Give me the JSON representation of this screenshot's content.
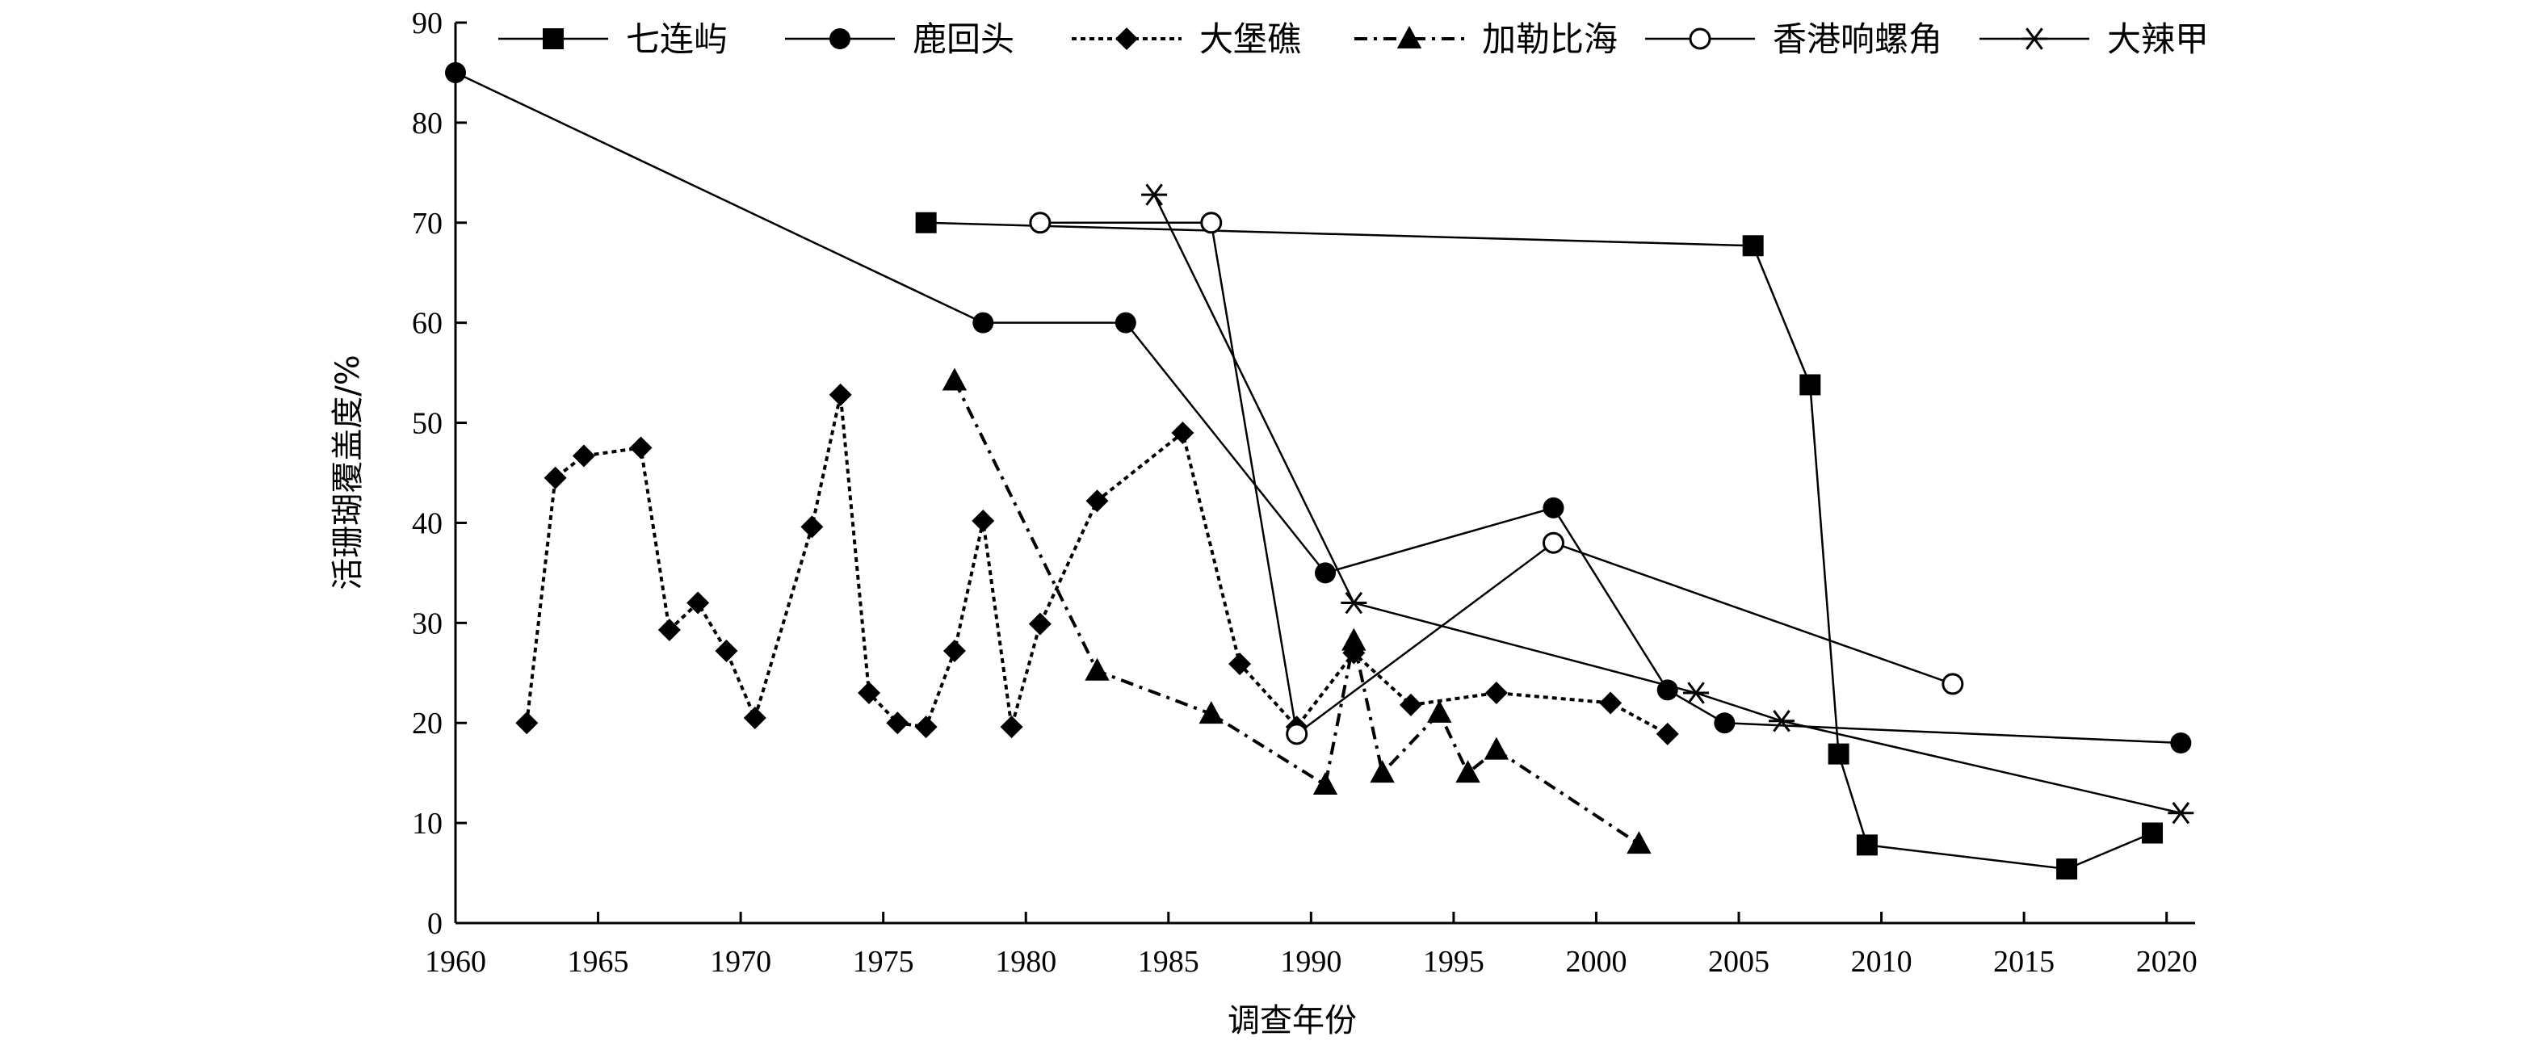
{
  "chart_data": {
    "type": "line",
    "xlabel": "调查年份",
    "ylabel": "活珊瑚覆盖度/%",
    "xlim": [
      1960,
      2021
    ],
    "ylim": [
      0,
      90
    ],
    "xticks": [
      "1960",
      "1965",
      "1970",
      "1975",
      "1980",
      "1985",
      "1990",
      "1995",
      "2000",
      "2005",
      "2010",
      "2015",
      "2020"
    ],
    "yticks": [
      "0",
      "10",
      "20",
      "30",
      "40",
      "50",
      "60",
      "70",
      "80",
      "90"
    ],
    "legend_position": "top",
    "series": [
      {
        "name": "七连屿",
        "marker": "square",
        "line": "solid",
        "x": [
          1976.5,
          2005.5,
          2007.5,
          2008.5,
          2009.5,
          2016.5,
          2019.5
        ],
        "y": [
          70,
          67.7,
          53.8,
          16.9,
          7.8,
          5.4,
          9.0
        ]
      },
      {
        "name": "鹿回头",
        "marker": "circle",
        "line": "solid",
        "x": [
          1960,
          1978.5,
          1983.5,
          1990.5,
          1998.5,
          2002.5,
          2004.5,
          2020.5
        ],
        "y": [
          85,
          60,
          60,
          35,
          41.5,
          23.3,
          20,
          18
        ]
      },
      {
        "name": "大堡礁",
        "marker": "diamond",
        "line": "dotted",
        "x": [
          1962.5,
          1963.5,
          1964.5,
          1966.5,
          1967.5,
          1968.5,
          1969.5,
          1970.5,
          1972.5,
          1973.5,
          1974.5,
          1975.5,
          1976.5,
          1977.5,
          1978.5,
          1979.5,
          1980.5,
          1982.5,
          1985.5,
          1987.5,
          1989.5,
          1991.5,
          1993.5,
          1996.5,
          2000.5,
          2002.5
        ],
        "y": [
          20,
          44.5,
          46.7,
          47.5,
          29.3,
          32,
          27.2,
          20.5,
          39.6,
          52.8,
          23,
          20,
          19.6,
          27.2,
          40.2,
          19.6,
          29.9,
          42.2,
          49,
          25.9,
          19.6,
          27,
          21.8,
          23,
          22,
          18.9
        ]
      },
      {
        "name": "加勒比海",
        "marker": "triangle",
        "line": "dashdot",
        "x": [
          1977.5,
          1982.5,
          1986.5,
          1990.5,
          1991.5,
          1992.5,
          1994.5,
          1995.5,
          1996.5,
          2001.5
        ],
        "y": [
          54.2,
          25.2,
          20.9,
          13.8,
          28.2,
          15,
          21,
          15,
          17.3,
          7.9
        ]
      },
      {
        "name": "香港响螺角",
        "marker": "open-circle",
        "line": "solid",
        "x": [
          1980.5,
          1986.5,
          1989.5,
          1998.5,
          2012.5
        ],
        "y": [
          70,
          70,
          18.9,
          38,
          23.9
        ]
      },
      {
        "name": "大辣甲",
        "marker": "asterisk",
        "line": "solid",
        "x": [
          1984.5,
          1991.5,
          2003.5,
          2006.5,
          2020.5
        ],
        "y": [
          72.8,
          32,
          23,
          20.2,
          11
        ]
      }
    ]
  },
  "colors": {
    "ink": "#000000",
    "background": "#ffffff"
  }
}
